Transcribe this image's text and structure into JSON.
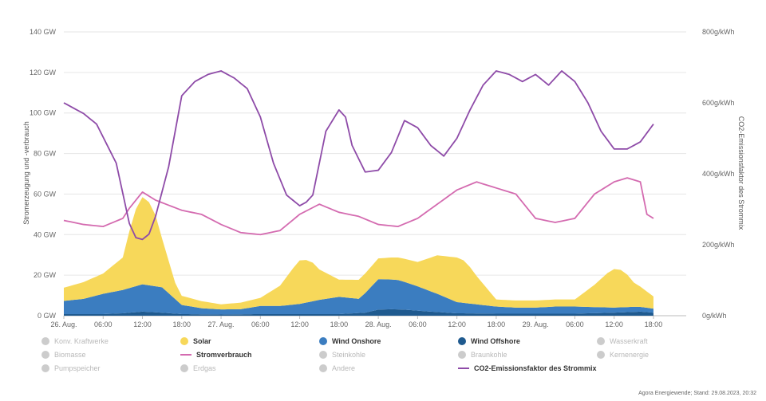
{
  "chart_data": {
    "type": "area",
    "x_ticks": [
      "26. Aug.",
      "06:00",
      "12:00",
      "18:00",
      "27. Aug.",
      "06:00",
      "12:00",
      "18:00",
      "28. Aug.",
      "06:00",
      "12:00",
      "18:00",
      "29. Aug.",
      "06:00",
      "12:00",
      "18:00"
    ],
    "x_hours": [
      0,
      6,
      12,
      18,
      24,
      30,
      36,
      42,
      48,
      54,
      60,
      66,
      72,
      78,
      84,
      90
    ],
    "x_range": [
      0,
      95
    ],
    "y_left": {
      "label": "Stromerzeugung und -verbrauch",
      "ticks": [
        "0 GW",
        "20 GW",
        "40 GW",
        "60 GW",
        "80 GW",
        "100 GW",
        "120 GW",
        "140 GW"
      ],
      "range": [
        0,
        140
      ]
    },
    "y_right": {
      "label": "CO2-Emissionsfaktor des Strommix",
      "ticks": [
        "0g/kWh",
        "200g/kWh",
        "400g/kWh",
        "600g/kWh",
        "800g/kWh"
      ],
      "range": [
        0,
        800
      ]
    },
    "grid": true,
    "series": [
      {
        "name": "Wind Offshore",
        "kind": "area",
        "color": "#1f5a8f",
        "hours": [
          0,
          6,
          9,
          12,
          15,
          18,
          24,
          30,
          36,
          42,
          46,
          48,
          50,
          52,
          56,
          60,
          66,
          72,
          78,
          84,
          88,
          90
        ],
        "values": [
          0.8,
          0.8,
          1.2,
          2.0,
          1.5,
          0.8,
          0.6,
          0.8,
          0.8,
          0.8,
          1.5,
          3.0,
          3.2,
          3.0,
          2.0,
          1.2,
          1.0,
          1.0,
          1.0,
          1.5,
          2.0,
          1.5
        ]
      },
      {
        "name": "Wind Onshore",
        "kind": "area",
        "color": "#3b7dc0",
        "hours": [
          0,
          3,
          6,
          9,
          12,
          15,
          18,
          21,
          24,
          27,
          30,
          33,
          36,
          39,
          42,
          45,
          48,
          51,
          54,
          57,
          60,
          63,
          66,
          69,
          72,
          75,
          78,
          81,
          84,
          87,
          90
        ],
        "values": [
          6.5,
          7.5,
          10.0,
          11.5,
          13.5,
          12.5,
          4.5,
          3.0,
          2.5,
          2.5,
          4.0,
          4.0,
          5.0,
          7.0,
          8.5,
          7.0,
          15.0,
          14.5,
          12.0,
          9.0,
          5.5,
          4.5,
          3.5,
          3.0,
          3.0,
          3.5,
          3.5,
          3.0,
          2.5,
          2.5,
          2.0
        ]
      },
      {
        "name": "Solar",
        "kind": "area",
        "color": "#f7d85a",
        "hours": [
          0,
          6,
          9,
          10,
          11,
          12,
          13,
          14,
          15,
          17,
          18,
          24,
          30,
          33,
          35,
          36,
          37,
          38,
          39,
          42,
          54,
          57,
          59,
          60,
          61,
          62,
          63,
          66,
          78,
          81,
          83,
          84,
          85,
          86,
          87,
          90
        ],
        "values": [
          6.5,
          10.0,
          16.0,
          28.0,
          38.0,
          43.0,
          41.0,
          35.0,
          24.0,
          8.0,
          4.5,
          2.5,
          4.0,
          10.0,
          18.0,
          21.5,
          21.0,
          19.0,
          15.0,
          8.5,
          12.0,
          19.0,
          21.0,
          22.0,
          21.0,
          18.0,
          14.0,
          3.5,
          3.5,
          11.0,
          17.0,
          19.0,
          18.5,
          16.0,
          12.0,
          6.0
        ]
      },
      {
        "name": "Stromverbrauch",
        "kind": "line",
        "color": "#d46bb0",
        "hours": [
          0,
          3,
          6,
          9,
          10,
          12,
          14,
          18,
          21,
          24,
          27,
          30,
          33,
          36,
          39,
          42,
          45,
          48,
          51,
          54,
          57,
          60,
          63,
          66,
          69,
          72,
          75,
          78,
          81,
          84,
          86,
          88,
          89,
          90
        ],
        "values": [
          47,
          45,
          44,
          48,
          53,
          61,
          57,
          52,
          50,
          45,
          41,
          40,
          42,
          50,
          55,
          51,
          49,
          45,
          44,
          48,
          55,
          62,
          66,
          63,
          60,
          48,
          46,
          48,
          60,
          66,
          68,
          66,
          50,
          48
        ]
      },
      {
        "name": "CO2-Emissionsfaktor des Strommix",
        "kind": "line",
        "axis": "right",
        "color": "#8e4ba8",
        "hours": [
          0,
          3,
          5,
          8,
          10,
          11,
          12,
          13,
          14,
          16,
          18,
          20,
          22,
          24,
          26,
          28,
          30,
          32,
          34,
          36,
          37,
          38,
          40,
          42,
          43,
          44,
          46,
          48,
          50,
          52,
          54,
          56,
          58,
          60,
          62,
          64,
          66,
          68,
          70,
          72,
          74,
          76,
          78,
          80,
          82,
          84,
          86,
          88,
          90
        ],
        "values": [
          600,
          570,
          540,
          430,
          260,
          220,
          215,
          230,
          280,
          420,
          620,
          660,
          680,
          690,
          670,
          640,
          560,
          430,
          340,
          310,
          320,
          340,
          520,
          580,
          560,
          480,
          405,
          410,
          460,
          550,
          530,
          480,
          450,
          500,
          580,
          650,
          690,
          680,
          660,
          680,
          650,
          690,
          660,
          600,
          520,
          470,
          470,
          490,
          540
        ]
      }
    ]
  },
  "legend": {
    "items": [
      {
        "label": "Konv. Kraftwerke",
        "shape": "dot",
        "color": "#cccccc",
        "active": false
      },
      {
        "label": "Solar",
        "shape": "dot",
        "color": "#f7d85a",
        "active": true
      },
      {
        "label": "Wind Onshore",
        "shape": "dot",
        "color": "#3b7dc0",
        "active": true
      },
      {
        "label": "Wind Offshore",
        "shape": "dot",
        "color": "#1f5a8f",
        "active": true
      },
      {
        "label": "Wasserkraft",
        "shape": "dot",
        "color": "#cccccc",
        "active": false
      },
      {
        "label": "Biomasse",
        "shape": "dot",
        "color": "#cccccc",
        "active": false
      },
      {
        "label": "Stromverbrauch",
        "shape": "line",
        "color": "#d46bb0",
        "active": true
      },
      {
        "label": "Steinkohle",
        "shape": "dot",
        "color": "#cccccc",
        "active": false
      },
      {
        "label": "Braunkohle",
        "shape": "dot",
        "color": "#cccccc",
        "active": false
      },
      {
        "label": "Kernenergie",
        "shape": "dot",
        "color": "#cccccc",
        "active": false
      },
      {
        "label": "Pumpspeicher",
        "shape": "dot",
        "color": "#cccccc",
        "active": false
      },
      {
        "label": "Erdgas",
        "shape": "dot",
        "color": "#cccccc",
        "active": false
      },
      {
        "label": "Andere",
        "shape": "dot",
        "color": "#cccccc",
        "active": false
      },
      {
        "label": "CO2-Emissionsfaktor des Strommix",
        "shape": "line",
        "color": "#8e4ba8",
        "active": true
      }
    ]
  },
  "source": "Agora Energiewende; Stand: 29.08.2023, 20:32"
}
